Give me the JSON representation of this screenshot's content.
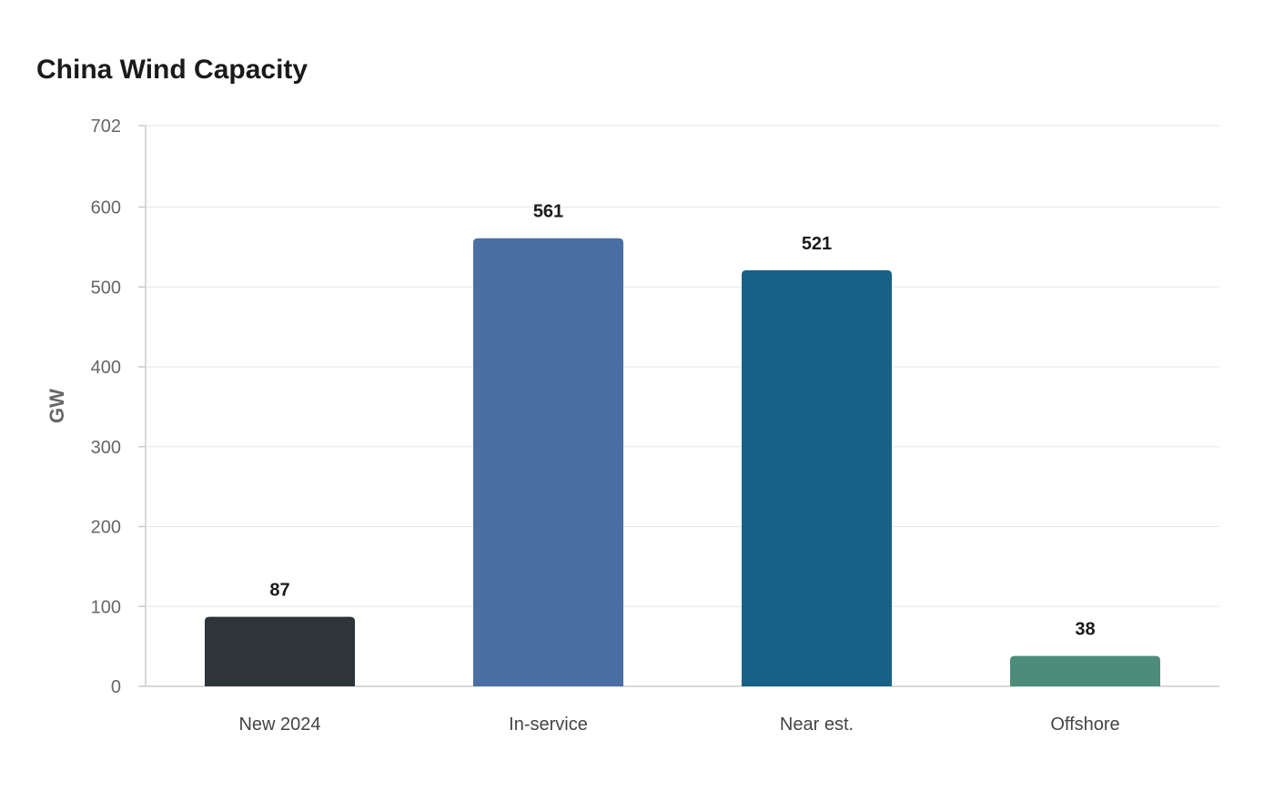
{
  "chart_data": {
    "type": "bar",
    "title": "China Wind Capacity",
    "xlabel": "",
    "ylabel": "GW",
    "categories": [
      "New 2024",
      "In-service",
      "Near est.",
      "Offshore"
    ],
    "values": [
      87,
      561,
      521,
      38
    ],
    "colors": [
      "#2e3538",
      "#4a6fa3",
      "#186187",
      "#4e8c7a"
    ],
    "ylim": [
      0,
      702
    ],
    "yticks": [
      0,
      100,
      200,
      300,
      400,
      500,
      600,
      702
    ],
    "grid": true,
    "legend": "none"
  }
}
